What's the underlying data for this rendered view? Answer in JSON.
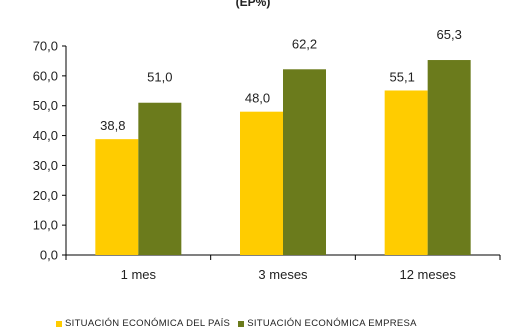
{
  "chart_data": {
    "type": "bar",
    "title": "(EP%)",
    "categories": [
      "1 mes",
      "3 meses",
      "12 meses"
    ],
    "series": [
      {
        "name": "SITUACIÓN ECONÓMICA DEL PAÍS",
        "values": [
          38.8,
          48.0,
          55.1
        ],
        "labels": [
          "38,8",
          "48,0",
          "55,1"
        ],
        "color": "#ffcc00"
      },
      {
        "name": "SITUACIÓN ECONÓMICA EMPRESA",
        "values": [
          51.0,
          62.2,
          65.3
        ],
        "labels": [
          "51,0",
          "62,2",
          "65,3"
        ],
        "color": "#6b7b1c"
      }
    ],
    "ylim": [
      0,
      70
    ],
    "yticks": [
      0,
      10,
      20,
      30,
      40,
      50,
      60,
      70
    ],
    "ytick_labels": [
      "0,0",
      "10,0",
      "20,0",
      "30,0",
      "40,0",
      "50,0",
      "60,0",
      "70,0"
    ],
    "grid": false,
    "legend_position": "bottom"
  }
}
